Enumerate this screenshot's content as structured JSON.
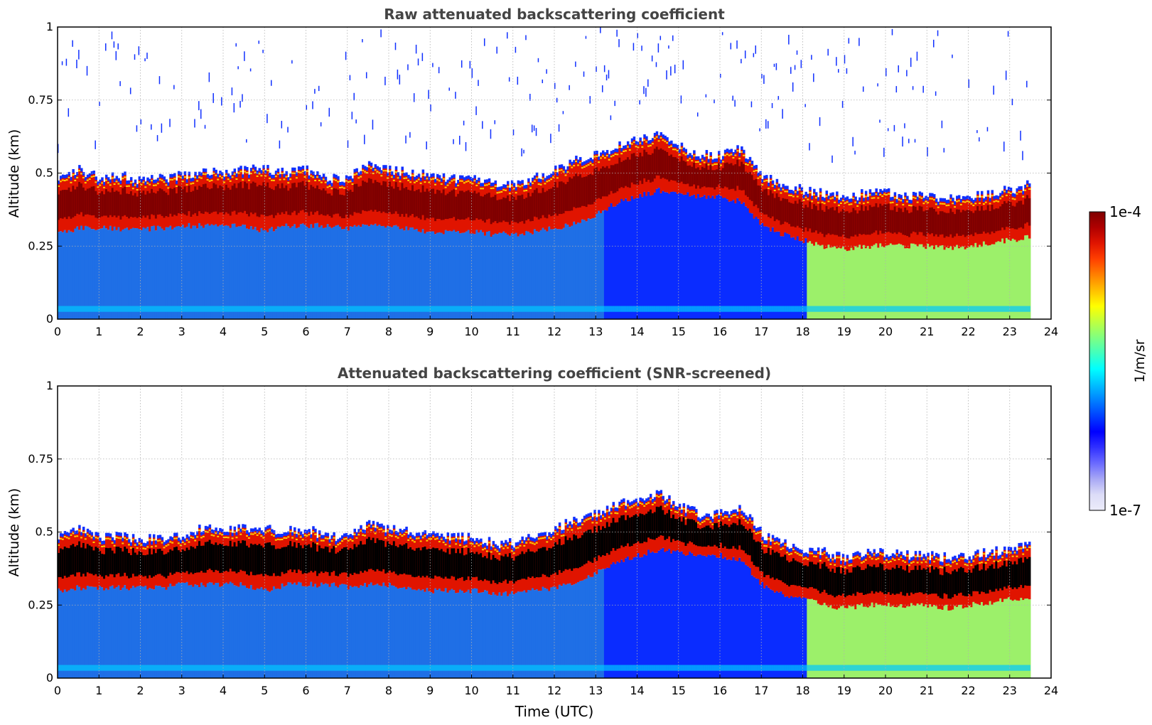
{
  "chart_data": [
    {
      "type": "heatmap",
      "title": "Raw attenuated backscattering coefficient",
      "xlabel": "",
      "ylabel": "Altitude (km)",
      "xlim": [
        0,
        24
      ],
      "ylim": [
        0,
        1
      ],
      "x_ticks": [
        "0",
        "1",
        "2",
        "3",
        "4",
        "5",
        "6",
        "7",
        "8",
        "9",
        "10",
        "11",
        "12",
        "13",
        "14",
        "15",
        "16",
        "17",
        "18",
        "19",
        "20",
        "21",
        "22",
        "23",
        "24"
      ],
      "y_ticks": [
        "0",
        "0.25",
        "0.5",
        "0.75",
        "1"
      ],
      "grid": true,
      "data_extent_hours": [
        0,
        23.5
      ],
      "layer_top_km": [
        [
          0,
          0.48
        ],
        [
          0.5,
          0.5
        ],
        [
          1,
          0.47
        ],
        [
          1.5,
          0.48
        ],
        [
          2,
          0.46
        ],
        [
          2.5,
          0.47
        ],
        [
          3,
          0.48
        ],
        [
          3.5,
          0.5
        ],
        [
          4,
          0.49
        ],
        [
          4.5,
          0.5
        ],
        [
          5,
          0.5
        ],
        [
          5.5,
          0.49
        ],
        [
          6,
          0.5
        ],
        [
          6.5,
          0.47
        ],
        [
          7,
          0.47
        ],
        [
          7.5,
          0.52
        ],
        [
          8,
          0.5
        ],
        [
          8.5,
          0.49
        ],
        [
          9,
          0.48
        ],
        [
          9.5,
          0.47
        ],
        [
          10,
          0.47
        ],
        [
          10.5,
          0.45
        ],
        [
          11,
          0.45
        ],
        [
          11.5,
          0.47
        ],
        [
          12,
          0.5
        ],
        [
          12.5,
          0.53
        ],
        [
          13,
          0.55
        ],
        [
          13.5,
          0.58
        ],
        [
          14,
          0.6
        ],
        [
          14.5,
          0.62
        ],
        [
          15,
          0.58
        ],
        [
          15.5,
          0.55
        ],
        [
          16,
          0.55
        ],
        [
          16.5,
          0.57
        ],
        [
          17,
          0.48
        ],
        [
          17.5,
          0.45
        ],
        [
          18,
          0.43
        ],
        [
          18.5,
          0.42
        ],
        [
          19,
          0.4
        ],
        [
          19.5,
          0.42
        ],
        [
          20,
          0.42
        ],
        [
          20.5,
          0.41
        ],
        [
          21,
          0.41
        ],
        [
          21.5,
          0.4
        ],
        [
          22,
          0.41
        ],
        [
          22.5,
          0.42
        ],
        [
          23,
          0.43
        ],
        [
          23.5,
          0.45
        ]
      ],
      "layer_bottom_km": [
        [
          0,
          0.3
        ],
        [
          0.5,
          0.31
        ],
        [
          1,
          0.31
        ],
        [
          1.5,
          0.31
        ],
        [
          2,
          0.31
        ],
        [
          2.5,
          0.31
        ],
        [
          3,
          0.32
        ],
        [
          3.5,
          0.32
        ],
        [
          4,
          0.32
        ],
        [
          4.5,
          0.32
        ],
        [
          5,
          0.3
        ],
        [
          5.5,
          0.32
        ],
        [
          6,
          0.32
        ],
        [
          6.5,
          0.32
        ],
        [
          7,
          0.31
        ],
        [
          7.5,
          0.32
        ],
        [
          8,
          0.32
        ],
        [
          8.5,
          0.31
        ],
        [
          9,
          0.3
        ],
        [
          9.5,
          0.3
        ],
        [
          10,
          0.3
        ],
        [
          10.5,
          0.29
        ],
        [
          11,
          0.29
        ],
        [
          11.5,
          0.3
        ],
        [
          12,
          0.31
        ],
        [
          12.5,
          0.33
        ],
        [
          13,
          0.36
        ],
        [
          13.5,
          0.4
        ],
        [
          14,
          0.42
        ],
        [
          14.5,
          0.44
        ],
        [
          15,
          0.43
        ],
        [
          15.5,
          0.42
        ],
        [
          16,
          0.42
        ],
        [
          16.5,
          0.4
        ],
        [
          17,
          0.32
        ],
        [
          17.5,
          0.29
        ],
        [
          18,
          0.27
        ],
        [
          18.5,
          0.25
        ],
        [
          19,
          0.24
        ],
        [
          19.5,
          0.25
        ],
        [
          20,
          0.25
        ],
        [
          20.5,
          0.25
        ],
        [
          21,
          0.25
        ],
        [
          21.5,
          0.24
        ],
        [
          22,
          0.25
        ],
        [
          22.5,
          0.26
        ],
        [
          23,
          0.27
        ],
        [
          23.5,
          0.28
        ]
      ]
    },
    {
      "type": "heatmap",
      "title": "Attenuated backscattering coefficient (SNR-screened)",
      "xlabel": "Time (UTC)",
      "ylabel": "Altitude (km)",
      "xlim": [
        0,
        24
      ],
      "ylim": [
        0,
        1
      ],
      "x_ticks": [
        "0",
        "1",
        "2",
        "3",
        "4",
        "5",
        "6",
        "7",
        "8",
        "9",
        "10",
        "11",
        "12",
        "13",
        "14",
        "15",
        "16",
        "17",
        "18",
        "19",
        "20",
        "21",
        "22",
        "23",
        "24"
      ],
      "y_ticks": [
        "0",
        "0.25",
        "0.5",
        "0.75",
        "1"
      ],
      "grid": true,
      "data_extent_hours": [
        0,
        23.5
      ]
    }
  ],
  "colorbar": {
    "label": "1/m/sr",
    "max_label": "1e-4",
    "min_label": "1e-7",
    "colors": [
      "#7f0000",
      "#b00000",
      "#e01400",
      "#ff4000",
      "#ff8000",
      "#ffbf00",
      "#ffff00",
      "#bfff40",
      "#80ff80",
      "#40ffbf",
      "#00ffff",
      "#00c0ff",
      "#0080ff",
      "#0040ff",
      "#0000ff",
      "#3030ff",
      "#6a6aff",
      "#a8a8f5",
      "#dcdcf7",
      "#ececfa"
    ]
  },
  "palette": {
    "boundary_dark": "#7f0000",
    "boundary_red": "#e01400",
    "boundary_yellow": "#ffd000",
    "below_cloud": "#1f6fe6",
    "low_cloud_blue": "#0a2cff",
    "saturated_black": "#000000",
    "aerosol_green": "#9cf06a",
    "noise_blue": "#1030ff"
  }
}
